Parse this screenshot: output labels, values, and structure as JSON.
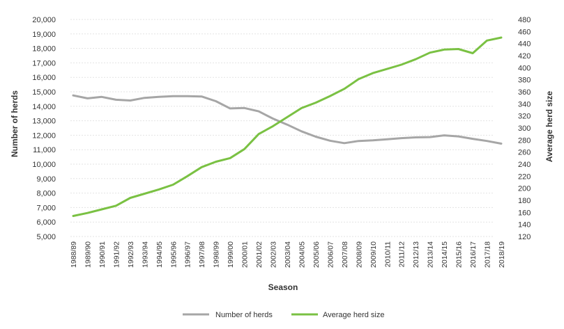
{
  "chart_data": {
    "type": "line",
    "xlabel": "Season",
    "ylabel_left": "Number of herds",
    "ylabel_right": "Average herd size",
    "categories": [
      "1988/89",
      "1989/90",
      "1990/91",
      "1991/92",
      "1992/93",
      "1993/94",
      "1994/95",
      "1995/96",
      "1996/97",
      "1997/98",
      "1998/99",
      "1999/00",
      "2000/01",
      "2001/02",
      "2002/03",
      "2003/04",
      "2004/05",
      "2005/06",
      "2006/07",
      "2007/08",
      "2008/09",
      "2009/10",
      "2010/11",
      "2011/12",
      "2012/13",
      "2013/14",
      "2014/15",
      "2015/16",
      "2016/17",
      "2017/18",
      "2018/19"
    ],
    "y_left": {
      "min": 5000,
      "max": 20000,
      "step": 1000,
      "ticks": [
        "5,000",
        "6,000",
        "7,000",
        "8,000",
        "9,000",
        "10,000",
        "11,000",
        "12,000",
        "13,000",
        "14,000",
        "15,000",
        "16,000",
        "17,000",
        "18,000",
        "19,000",
        "20,000"
      ]
    },
    "y_right": {
      "min": 120,
      "max": 480,
      "step": 20,
      "ticks": [
        "120",
        "140",
        "160",
        "180",
        "200",
        "220",
        "240",
        "260",
        "280",
        "300",
        "320",
        "340",
        "360",
        "380",
        "400",
        "420",
        "440",
        "460",
        "480"
      ]
    },
    "grid": true,
    "legend_position": "bottom",
    "series": [
      {
        "name": "Number of herds",
        "axis": "left",
        "color": "#a6a6a6",
        "values": [
          14750,
          14550,
          14650,
          14450,
          14400,
          14580,
          14650,
          14700,
          14700,
          14680,
          14350,
          13850,
          13880,
          13650,
          13150,
          12730,
          12270,
          11900,
          11620,
          11450,
          11600,
          11650,
          11720,
          11800,
          11850,
          11870,
          11990,
          11920,
          11750,
          11600,
          11420
        ]
      },
      {
        "name": "Average herd size",
        "axis": "right",
        "color": "#7ac143",
        "values": [
          154,
          159,
          165,
          171,
          184,
          191,
          198,
          206,
          220,
          235,
          244,
          250,
          265,
          290,
          303,
          318,
          333,
          342,
          353,
          365,
          381,
          391,
          398,
          405,
          414,
          425,
          430,
          431,
          424,
          445,
          450
        ]
      }
    ]
  }
}
